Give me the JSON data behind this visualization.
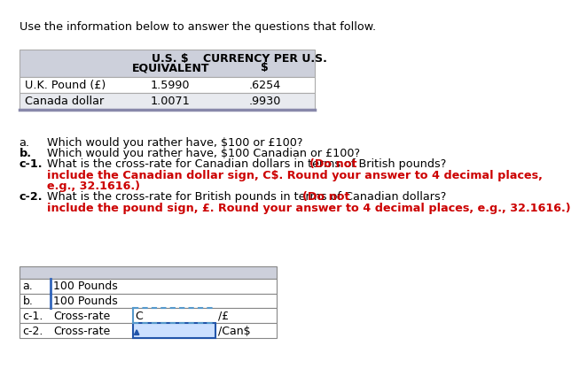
{
  "title": "Use the information below to answer the questions that follow.",
  "table1_header_col1": "",
  "table1_header_col2_line1": "U.S. $",
  "table1_header_col2_line2": "EQUIVALENT",
  "table1_header_col3_line1": "CURRENCY PER U.S.",
  "table1_header_col3_line2": "$",
  "table1_rows": [
    [
      "U.K. Pound (£)",
      "1.5990",
      ".6254"
    ],
    [
      "Canada dollar",
      "1.0071",
      ".9930"
    ]
  ],
  "table1_header_bg": "#cdd0db",
  "table1_row0_bg": "#ffffff",
  "table1_row1_bg": "#e8eaef",
  "table1_border": "#aaaaaa",
  "qa_label_a": "a.",
  "qa_text_a": "Which would you rather have, $100 or £100?",
  "qa_label_b": "b.",
  "qa_text_b": "Which would you rather have, $100 Canadian or £100?",
  "qa_label_c1": "c-1.",
  "qa_text_c1_black": "What is the cross-rate for Canadian dollars in terms of British pounds? ",
  "qa_text_c1_red_line1": "(Do not",
  "qa_text_c1_red_line2": "include the Canadian dollar sign, C$. Round your answer to 4 decimal places,",
  "qa_text_c1_red_line3": "e.g., 32.1616.)",
  "qa_label_c2": "c-2.",
  "qa_text_c2_black": "What is the cross-rate for British pounds in terms of Canadian dollars? ",
  "qa_text_c2_red_line1": "(Do not",
  "qa_text_c2_red_line2": "include the pound sign, £. Round your answer to 4 decimal places, e.g., 32.1616.)",
  "ans_row_labels": [
    "a.",
    "b.",
    "c-1.",
    "c-2."
  ],
  "ans_col1_vals": [
    "100 Pounds",
    "100 Pounds",
    "Cross-rate",
    "Cross-rate"
  ],
  "ans_col2_prefix": [
    "",
    "",
    "C",
    ""
  ],
  "ans_col3_suffix": [
    "",
    "",
    "/£",
    "/Can$"
  ],
  "ans_header_bg": "#cdd0db",
  "ans_border": "#888888",
  "dotted_color": "#5599cc",
  "cursor_color": "#2255aa",
  "red_color": "#cc0000",
  "bg_color": "#ffffff"
}
